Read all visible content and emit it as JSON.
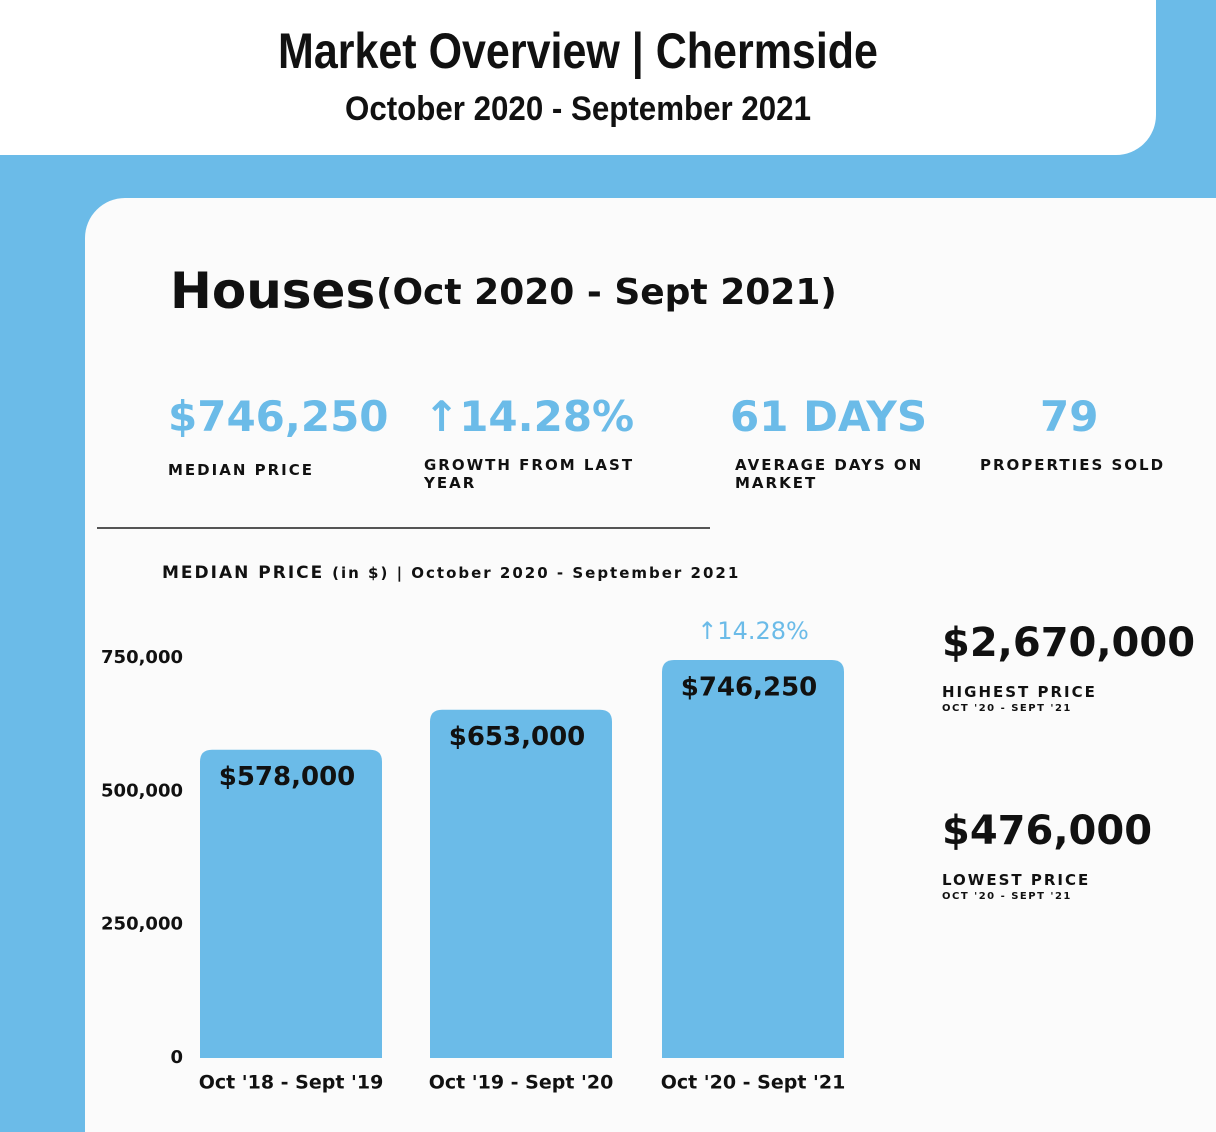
{
  "header": {
    "title": "Market Overview | Chermside",
    "subtitle": "October 2020 - September 2021"
  },
  "section": {
    "heading": "Houses",
    "period": "(Oct 2020 - Sept 2021)"
  },
  "stats": [
    {
      "value": "$746,250",
      "label": "MEDIAN PRICE"
    },
    {
      "value": "↑14.28%",
      "label": "GROWTH FROM LAST YEAR"
    },
    {
      "value": "61 DAYS",
      "label": "AVERAGE DAYS ON MARKET"
    },
    {
      "value": "79",
      "label": "PROPERTIES SOLD"
    }
  ],
  "highlights": [
    {
      "value": "$2,670,000",
      "label": "HIGHEST PRICE",
      "period": "OCT '20 - SEPT '21"
    },
    {
      "value": "$476,000",
      "label": "LOWEST PRICE",
      "period": "OCT '20 - SEPT '21"
    }
  ],
  "chart_data": {
    "type": "bar",
    "title": "MEDIAN PRICE",
    "subtitle": "(in $) | October 2020 - September 2021",
    "categories": [
      "Oct '18 - Sept '19",
      "Oct '19 - Sept '20",
      "Oct '20 - Sept '21"
    ],
    "values": [
      578000,
      653000,
      746250
    ],
    "value_labels": [
      "$578,000",
      "$653,000",
      "$746,250"
    ],
    "color": "#6bbbe8",
    "annotation": "↑14.28%",
    "ylim": [
      0,
      750000
    ],
    "yticks": [
      {
        "value": 0,
        "label": "0"
      },
      {
        "value": 250000,
        "label": "250,000"
      },
      {
        "value": 500000,
        "label": "500,000"
      },
      {
        "value": 750000,
        "label": "750,000"
      }
    ],
    "grid": false
  }
}
